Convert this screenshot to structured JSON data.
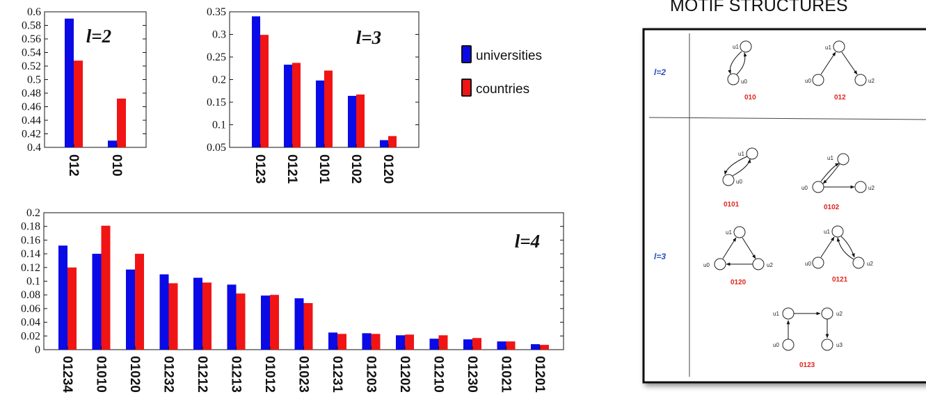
{
  "colors": {
    "universities": "#0a0ae6",
    "countries": "#f01414"
  },
  "legend": {
    "universities": "universities",
    "countries": "countries"
  },
  "chart_data": [
    {
      "type": "bar",
      "plot_label": "l=2",
      "categories": [
        "012",
        "010"
      ],
      "ylim": [
        0.4,
        0.6
      ],
      "yticks": [
        "0.4",
        "0.42",
        "0.44",
        "0.46",
        "0.48",
        "0.5",
        "0.52",
        "0.54",
        "0.56",
        "0.58",
        "0.6"
      ],
      "series": [
        {
          "name": "universities",
          "values": [
            0.59,
            0.41
          ]
        },
        {
          "name": "countries",
          "values": [
            0.528,
            0.472
          ]
        }
      ]
    },
    {
      "type": "bar",
      "plot_label": "l=3",
      "categories": [
        "0123",
        "0121",
        "0101",
        "0102",
        "0120"
      ],
      "ylim": [
        0.05,
        0.35
      ],
      "yticks": [
        "0.05",
        "0.1",
        "0.15",
        "0.2",
        "0.25",
        "0.3",
        "0.35"
      ],
      "series": [
        {
          "name": "universities",
          "values": [
            0.34,
            0.233,
            0.198,
            0.164,
            0.066
          ]
        },
        {
          "name": "countries",
          "values": [
            0.299,
            0.237,
            0.22,
            0.167,
            0.075
          ]
        }
      ]
    },
    {
      "type": "bar",
      "plot_label": "l=4",
      "categories": [
        "01234",
        "01010",
        "01020",
        "01232",
        "01212",
        "01213",
        "01012",
        "01023",
        "01231",
        "01203",
        "01202",
        "01210",
        "01230",
        "01021",
        "01201"
      ],
      "ylim": [
        0,
        0.2
      ],
      "yticks": [
        "0",
        "0.02",
        "0.04",
        "0.06",
        "0.08",
        "0.1",
        "0.12",
        "0.14",
        "0.16",
        "0.18",
        "0.2"
      ],
      "series": [
        {
          "name": "universities",
          "values": [
            0.152,
            0.14,
            0.117,
            0.11,
            0.105,
            0.095,
            0.079,
            0.075,
            0.025,
            0.024,
            0.021,
            0.016,
            0.015,
            0.012,
            0.008
          ]
        },
        {
          "name": "countries",
          "values": [
            0.12,
            0.181,
            0.14,
            0.097,
            0.098,
            0.082,
            0.08,
            0.068,
            0.023,
            0.023,
            0.022,
            0.021,
            0.017,
            0.012,
            0.007
          ]
        }
      ]
    }
  ],
  "motif_panel": {
    "title": "MOTIF STRUCTURES",
    "rows": [
      "l=2",
      "l=3"
    ],
    "motifs": [
      "010",
      "012",
      "0101",
      "0102",
      "0120",
      "0121",
      "0123"
    ],
    "nodes": [
      "u0",
      "u1",
      "u2",
      "u3"
    ]
  }
}
